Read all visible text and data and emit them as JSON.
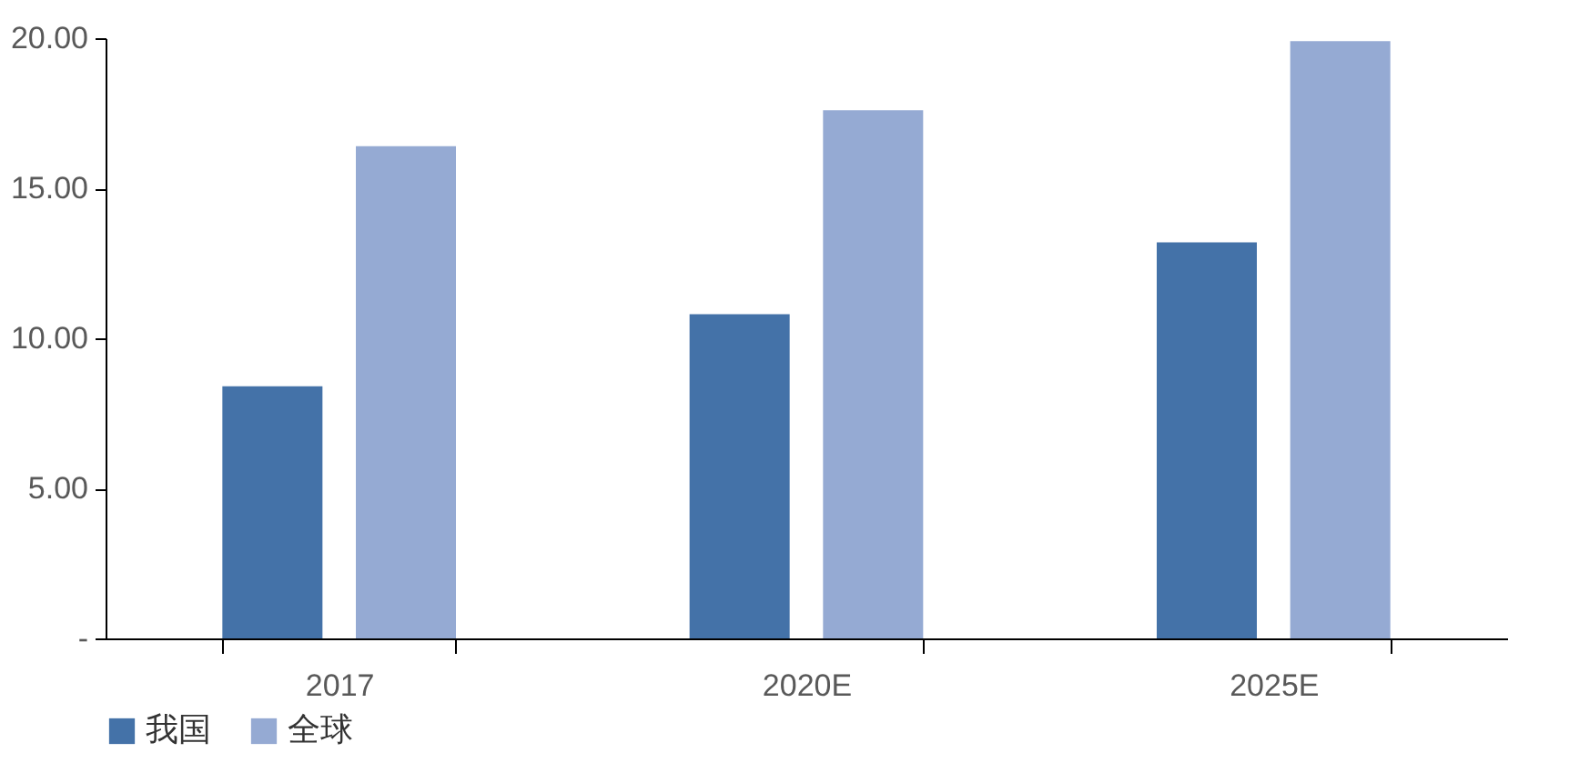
{
  "chart_data": {
    "type": "bar",
    "categories": [
      "2017",
      "2020E",
      "2025E"
    ],
    "series": [
      {
        "name": "我国",
        "color": "#4472a8",
        "values": [
          8.4,
          10.8,
          13.2
        ]
      },
      {
        "name": "全球",
        "color": "#95aad3",
        "values": [
          16.4,
          17.6,
          19.9
        ]
      }
    ],
    "ylim": [
      0,
      20
    ],
    "yticks": [
      {
        "value": 0,
        "label": "-"
      },
      {
        "value": 5,
        "label": "5.00"
      },
      {
        "value": 10,
        "label": "10.00"
      },
      {
        "value": 15,
        "label": "15.00"
      },
      {
        "value": 20,
        "label": "20.00"
      }
    ],
    "grid": false,
    "legend": "bottom"
  }
}
